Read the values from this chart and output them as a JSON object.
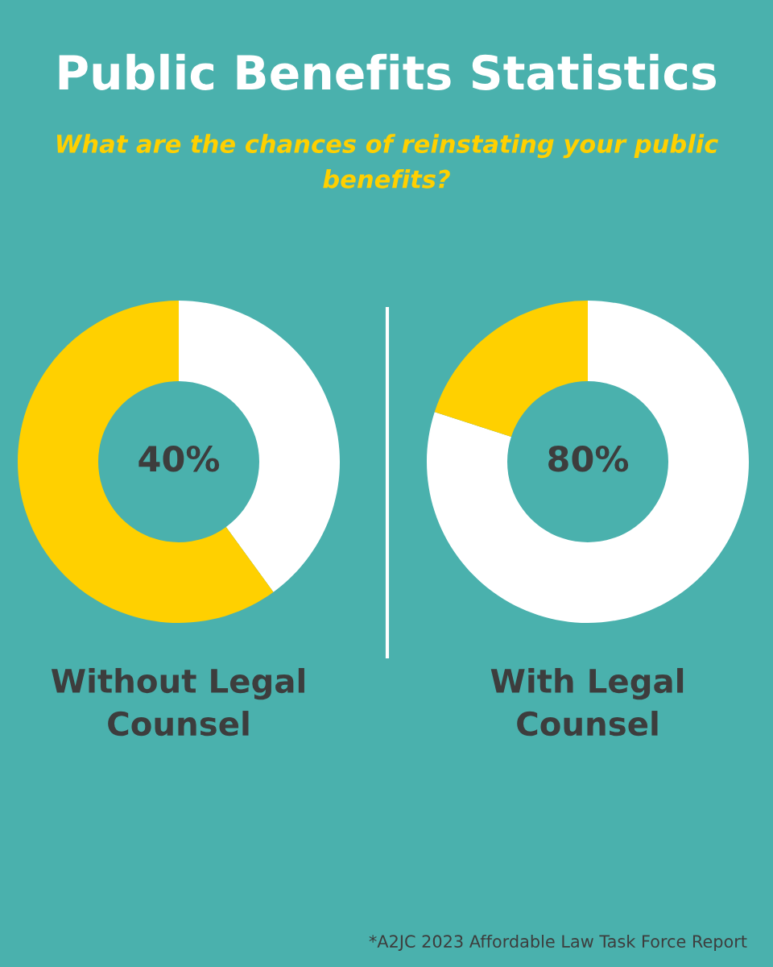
{
  "chart_data": [
    {
      "type": "donut",
      "title": "Public Benefits Statistics",
      "subtitle": "What are the chances of reinstating your public\nbenefits?",
      "xlabel": "Without Legal\nCounsel",
      "categories": [
        null,
        null
      ],
      "values": [
        40,
        60
      ],
      "colors": [
        "#ffffff",
        "#ffd000"
      ],
      "value_labels": [
        "40%",
        null
      ]
    },
    {
      "type": "donut",
      "xlabel": "With Legal\nCounsel",
      "categories": [
        null,
        null
      ],
      "values": [
        80,
        20
      ],
      "colors": [
        "#ffffff",
        "#ffd000"
      ],
      "value_labels": [
        "80%",
        null
      ],
      "annotations": [
        "*A2JC 2023 Affordable Law Task Force Report"
      ]
    }
  ]
}
